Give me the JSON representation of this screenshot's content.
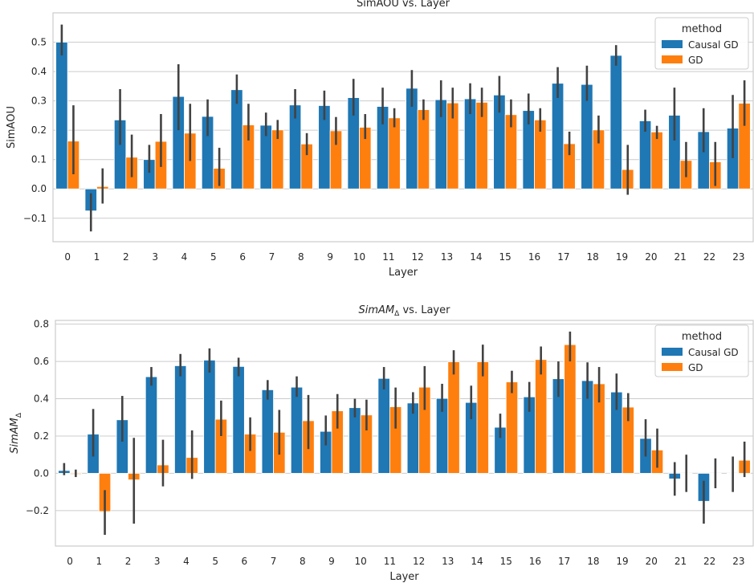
{
  "chart_data": [
    {
      "type": "bar",
      "title": "SimAOU vs. Layer",
      "xlabel": "Layer",
      "ylabel": "SimAOU",
      "ylim": [
        -0.18,
        0.6
      ],
      "yticks": [
        -0.1,
        0.0,
        0.1,
        0.2,
        0.3,
        0.4,
        0.5
      ],
      "ytick_labels": [
        "−0.1",
        "0.0",
        "0.1",
        "0.2",
        "0.3",
        "0.4",
        "0.5"
      ],
      "grid": true,
      "legend": {
        "title": "method",
        "position": "top-right"
      },
      "categories": [
        "0",
        "1",
        "2",
        "3",
        "4",
        "5",
        "6",
        "7",
        "8",
        "9",
        "10",
        "11",
        "12",
        "13",
        "14",
        "15",
        "16",
        "17",
        "18",
        "19",
        "20",
        "21",
        "22",
        "23"
      ],
      "series": [
        {
          "name": "Causal GD",
          "color": "#1f77b4",
          "values": [
            0.5,
            -0.075,
            0.235,
            0.1,
            0.315,
            0.247,
            0.338,
            0.217,
            0.286,
            0.284,
            0.311,
            0.281,
            0.343,
            0.304,
            0.307,
            0.32,
            0.267,
            0.36,
            0.356,
            0.455,
            0.232,
            0.251,
            0.195,
            0.207
          ],
          "err_low": [
            0.455,
            -0.145,
            0.15,
            0.055,
            0.2,
            0.18,
            0.29,
            0.18,
            0.24,
            0.235,
            0.25,
            0.22,
            0.28,
            0.245,
            0.255,
            0.26,
            0.22,
            0.31,
            0.3,
            0.42,
            0.195,
            0.165,
            0.125,
            0.105
          ],
          "err_high": [
            0.56,
            -0.015,
            0.34,
            0.15,
            0.425,
            0.305,
            0.39,
            0.26,
            0.34,
            0.335,
            0.375,
            0.345,
            0.405,
            0.37,
            0.36,
            0.385,
            0.325,
            0.415,
            0.42,
            0.49,
            0.27,
            0.345,
            0.275,
            0.32
          ]
        },
        {
          "name": "GD",
          "color": "#ff7f0e",
          "values": [
            0.163,
            0.008,
            0.108,
            0.162,
            0.19,
            0.07,
            0.218,
            0.201,
            0.153,
            0.198,
            0.21,
            0.242,
            0.27,
            0.293,
            0.295,
            0.253,
            0.235,
            0.154,
            0.201,
            0.066,
            0.194,
            0.097,
            0.092,
            0.292
          ],
          "err_low": [
            0.05,
            -0.05,
            0.04,
            0.075,
            0.095,
            0.01,
            0.165,
            0.17,
            0.115,
            0.15,
            0.17,
            0.21,
            0.235,
            0.24,
            0.245,
            0.21,
            0.195,
            0.115,
            0.155,
            -0.02,
            0.17,
            0.04,
            0.01,
            0.215
          ],
          "err_high": [
            0.285,
            0.07,
            0.185,
            0.255,
            0.29,
            0.14,
            0.29,
            0.235,
            0.19,
            0.245,
            0.255,
            0.275,
            0.305,
            0.345,
            0.345,
            0.305,
            0.275,
            0.195,
            0.25,
            0.15,
            0.215,
            0.16,
            0.16,
            0.37
          ]
        }
      ]
    },
    {
      "type": "bar",
      "title_main": "SimAM",
      "title_sub": "Δ",
      "title_rest": " vs. Layer",
      "xlabel": "Layer",
      "ylabel_main": "SimAM",
      "ylabel_sub": "Δ",
      "ylim": [
        -0.39,
        0.82
      ],
      "yticks": [
        -0.2,
        0.0,
        0.2,
        0.4,
        0.6,
        0.8
      ],
      "ytick_labels": [
        "−0.2",
        "0.0",
        "0.2",
        "0.4",
        "0.6",
        "0.8"
      ],
      "grid": true,
      "legend": {
        "title": "method",
        "position": "top-right"
      },
      "categories": [
        "0",
        "1",
        "2",
        "3",
        "4",
        "5",
        "6",
        "7",
        "8",
        "9",
        "10",
        "11",
        "12",
        "13",
        "14",
        "15",
        "16",
        "17",
        "18",
        "19",
        "20",
        "21",
        "22",
        "23"
      ],
      "series": [
        {
          "name": "Causal GD",
          "color": "#1f77b4",
          "values": [
            0.015,
            0.21,
            0.287,
            0.518,
            0.577,
            0.607,
            0.573,
            0.448,
            0.462,
            0.225,
            0.352,
            0.509,
            0.377,
            0.402,
            0.38,
            0.247,
            0.41,
            0.507,
            0.497,
            0.436,
            0.187,
            -0.03,
            -0.15,
            0.0
          ],
          "err_low": [
            -0.01,
            0.09,
            0.17,
            0.47,
            0.52,
            0.54,
            0.52,
            0.395,
            0.41,
            0.15,
            0.3,
            0.45,
            0.32,
            0.33,
            0.29,
            0.19,
            0.33,
            0.41,
            0.4,
            0.34,
            0.09,
            -0.12,
            -0.27,
            -0.1
          ],
          "err_high": [
            0.055,
            0.345,
            0.415,
            0.57,
            0.64,
            0.67,
            0.62,
            0.5,
            0.52,
            0.31,
            0.4,
            0.57,
            0.435,
            0.48,
            0.47,
            0.32,
            0.49,
            0.6,
            0.595,
            0.535,
            0.29,
            0.06,
            -0.04,
            0.09
          ]
        },
        {
          "name": "GD",
          "color": "#ff7f0e",
          "values": [
            -0.005,
            -0.205,
            -0.035,
            0.045,
            0.085,
            0.29,
            0.21,
            0.22,
            0.282,
            0.335,
            0.313,
            0.357,
            0.462,
            0.598,
            0.598,
            0.49,
            0.61,
            0.69,
            0.48,
            0.355,
            0.125,
            0.0,
            0.0,
            0.07
          ],
          "err_low": [
            -0.02,
            -0.33,
            -0.27,
            -0.07,
            -0.03,
            0.2,
            0.12,
            0.1,
            0.13,
            0.24,
            0.23,
            0.24,
            0.34,
            0.53,
            0.52,
            0.43,
            0.53,
            0.6,
            0.38,
            0.28,
            0.03,
            -0.1,
            -0.08,
            -0.02
          ],
          "err_high": [
            0.02,
            -0.09,
            0.19,
            0.18,
            0.23,
            0.39,
            0.3,
            0.34,
            0.42,
            0.425,
            0.395,
            0.46,
            0.575,
            0.66,
            0.69,
            0.55,
            0.68,
            0.76,
            0.57,
            0.43,
            0.24,
            0.1,
            0.08,
            0.17
          ]
        }
      ]
    }
  ]
}
